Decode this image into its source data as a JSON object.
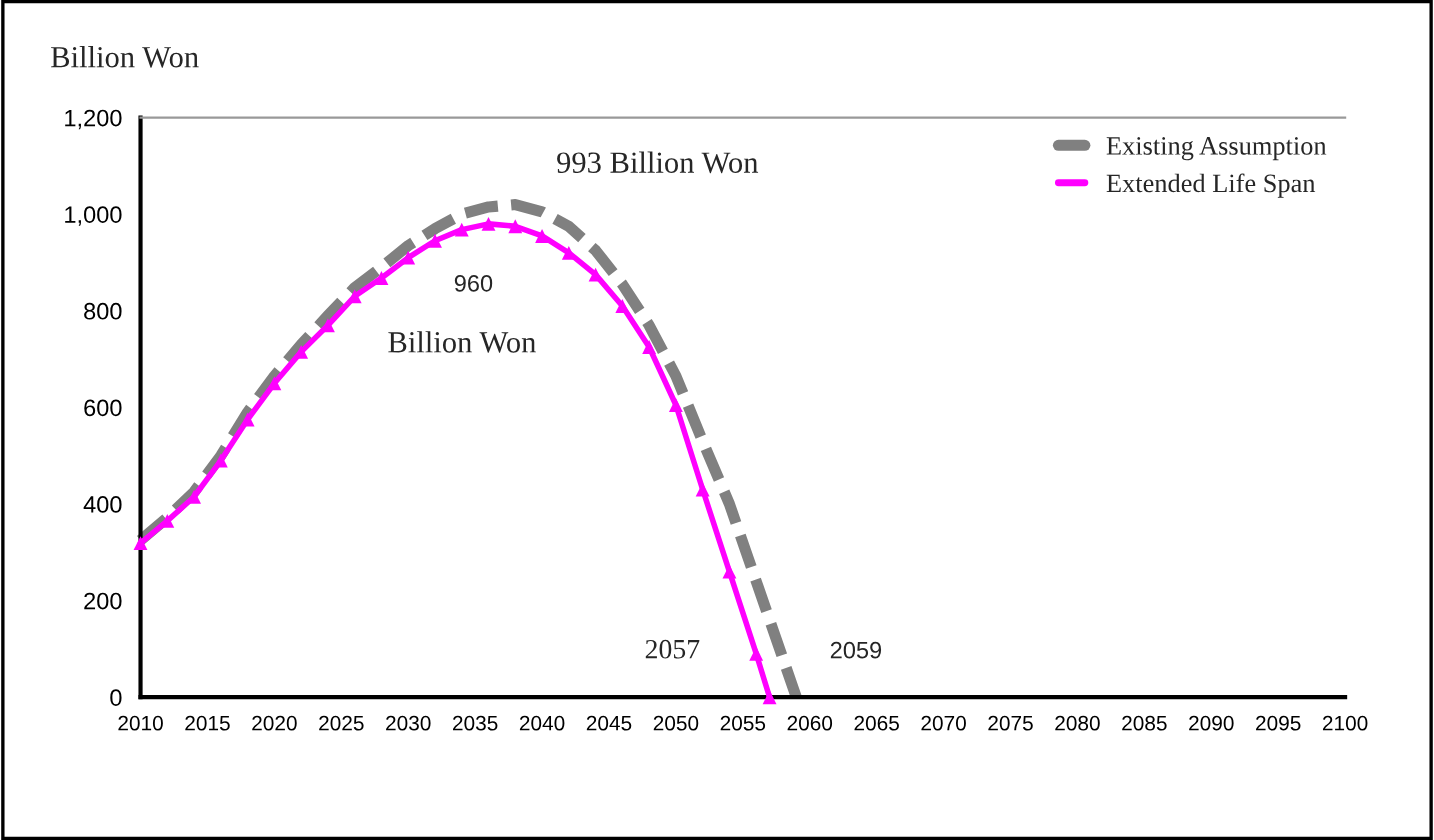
{
  "chart_data": {
    "type": "line",
    "ylabel": "Billion Won",
    "xlim": [
      2010,
      2100
    ],
    "xticks": [
      2010,
      2015,
      2020,
      2025,
      2030,
      2035,
      2040,
      2045,
      2050,
      2055,
      2060,
      2065,
      2070,
      2075,
      2080,
      2085,
      2090,
      2095,
      2100
    ],
    "ylim": [
      0,
      1200
    ],
    "yticks": [
      0,
      200,
      400,
      600,
      800,
      {
        "value": 1000,
        "label": "1,000"
      },
      {
        "value": 1200,
        "label": "1,200"
      }
    ],
    "grid": false,
    "legend": "top right",
    "series": [
      {
        "name": "Existing Assumption",
        "color": "#808080",
        "line_style": "dashed",
        "marker": "none",
        "x": [
          2010,
          2012,
          2014,
          2016,
          2018,
          2020,
          2022,
          2024,
          2026,
          2028,
          2030,
          2032,
          2034,
          2036,
          2038,
          2040,
          2042,
          2044,
          2046,
          2048,
          2050,
          2052,
          2054,
          2056,
          2058,
          2059
        ],
        "values": [
          325,
          372,
          425,
          500,
          590,
          665,
          730,
          790,
          848,
          890,
          935,
          970,
          1000,
          1015,
          1020,
          1005,
          975,
          925,
          855,
          770,
          665,
          530,
          400,
          240,
          80,
          0
        ]
      },
      {
        "name": "Extended Life Span",
        "color": "#ff00ff",
        "line_style": "solid",
        "marker": "triangle",
        "x": [
          2010,
          2012,
          2014,
          2016,
          2018,
          2020,
          2022,
          2024,
          2026,
          2028,
          2030,
          2032,
          2034,
          2036,
          2038,
          2040,
          2042,
          2044,
          2046,
          2048,
          2050,
          2052,
          2054,
          2056,
          2057
        ],
        "values": [
          319,
          365,
          415,
          490,
          575,
          650,
          715,
          770,
          830,
          868,
          910,
          945,
          968,
          980,
          975,
          955,
          920,
          875,
          810,
          725,
          605,
          430,
          260,
          90,
          0
        ]
      }
    ],
    "annotations": [
      "993 Billion Won",
      "960",
      "Billion Won",
      {
        "text": "2057",
        "x": 2057,
        "y": 0
      },
      {
        "text": "2059",
        "x": 2059,
        "y": 0
      }
    ]
  }
}
